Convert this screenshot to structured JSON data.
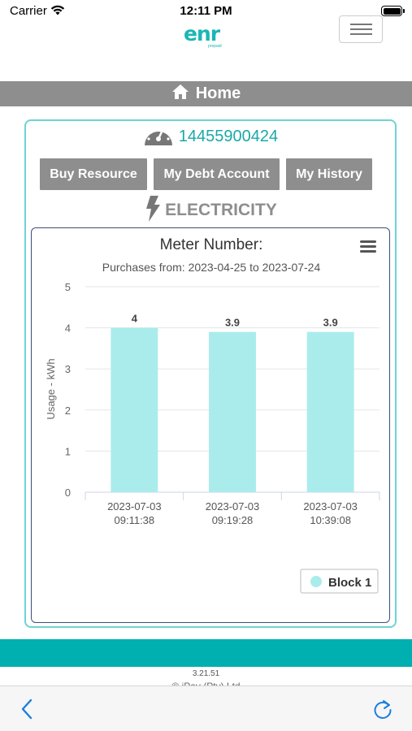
{
  "status_bar": {
    "carrier": "Carrier",
    "time": "12:11 PM"
  },
  "header": {
    "logo_text": "enr",
    "logo_sub": "prepaid",
    "page_title": "Home"
  },
  "meter": {
    "number": "14455900424"
  },
  "actions": [
    {
      "label": "Buy Resource"
    },
    {
      "label": "My Debt Account"
    },
    {
      "label": "My History"
    }
  ],
  "resource": {
    "label": "ELECTRICITY"
  },
  "chart_data": {
    "type": "bar",
    "title": "Meter Number:",
    "subtitle": "Purchases from: 2023-04-25 to 2023-07-24",
    "ylabel": "Usage - kWh",
    "xlabel": "",
    "categories": [
      [
        "2023-07-03",
        "09:11:38"
      ],
      [
        "2023-07-03",
        "09:19:28"
      ],
      [
        "2023-07-03",
        "10:39:08"
      ]
    ],
    "series": [
      {
        "name": "Block 1",
        "values": [
          4,
          3.9,
          3.9
        ],
        "color": "#aaeceb"
      }
    ],
    "data_labels": [
      "4",
      "3.9",
      "3.9"
    ],
    "ylim": [
      0,
      5
    ],
    "yticks": [
      0,
      1,
      2,
      3,
      4,
      5
    ],
    "grid": true,
    "legend": "bottom-right"
  },
  "footer": {
    "version": "3.21.51",
    "copyright": "© iPay (Pty) Ltd"
  },
  "colors": {
    "accent": "#00afaf",
    "gray_button": "#8e8e8e",
    "bar": "#aaeceb"
  }
}
